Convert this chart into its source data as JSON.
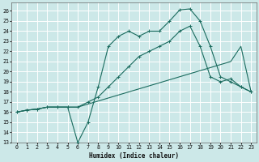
{
  "title": "",
  "xlabel": "Humidex (Indice chaleur)",
  "bg_color": "#cce8e8",
  "grid_color": "#ffffff",
  "line_color": "#1a6b5e",
  "xlim": [
    -0.5,
    23.5
  ],
  "ylim": [
    13,
    26.8
  ],
  "xticks": [
    0,
    1,
    2,
    3,
    4,
    5,
    6,
    7,
    8,
    9,
    10,
    11,
    12,
    13,
    14,
    15,
    16,
    17,
    18,
    19,
    20,
    21,
    22,
    23
  ],
  "yticks": [
    13,
    14,
    15,
    16,
    17,
    18,
    19,
    20,
    21,
    22,
    23,
    24,
    25,
    26
  ],
  "series1_x": [
    0,
    1,
    2,
    3,
    4,
    5,
    6,
    7,
    8,
    9,
    10,
    11,
    12,
    13,
    14,
    15,
    16,
    17,
    18,
    19,
    20,
    21,
    22,
    23
  ],
  "series1_y": [
    16.0,
    16.2,
    16.3,
    16.5,
    16.5,
    16.5,
    16.5,
    16.8,
    17.1,
    17.4,
    17.7,
    18.0,
    18.3,
    18.6,
    18.9,
    19.2,
    19.5,
    19.8,
    20.1,
    20.4,
    20.7,
    21.0,
    22.5,
    18.0
  ],
  "series2_x": [
    0,
    1,
    2,
    3,
    4,
    5,
    6,
    7,
    8,
    9,
    10,
    11,
    12,
    13,
    14,
    15,
    16,
    17,
    18,
    19,
    20,
    21,
    22,
    23
  ],
  "series2_y": [
    16.0,
    16.2,
    16.3,
    16.5,
    16.5,
    16.5,
    16.5,
    17.0,
    17.5,
    18.5,
    19.5,
    20.5,
    21.5,
    22.0,
    22.5,
    23.0,
    24.0,
    24.5,
    22.5,
    19.5,
    19.0,
    19.3,
    18.5,
    18.0
  ],
  "series3_x": [
    0,
    1,
    2,
    3,
    4,
    5,
    6,
    7,
    8,
    9,
    10,
    11,
    12,
    13,
    14,
    15,
    16,
    17,
    18,
    19,
    20,
    21,
    22,
    23
  ],
  "series3_y": [
    16.0,
    16.2,
    16.3,
    16.5,
    16.5,
    16.5,
    13.0,
    15.0,
    18.5,
    22.5,
    23.5,
    24.0,
    23.5,
    24.0,
    24.0,
    25.0,
    26.1,
    26.2,
    25.0,
    22.5,
    19.5,
    19.0,
    18.5,
    18.0
  ]
}
